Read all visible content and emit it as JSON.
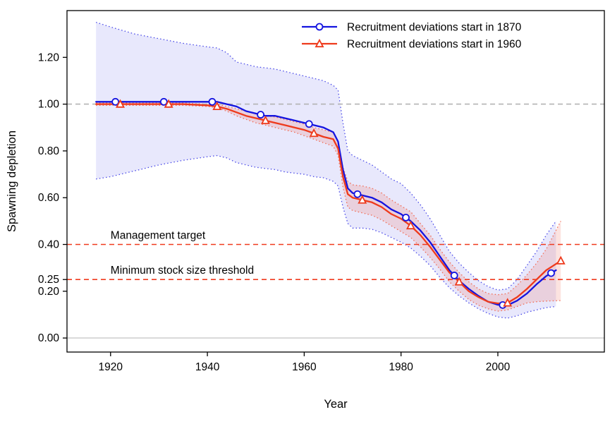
{
  "figure": {
    "background": "#ffffff"
  },
  "chart_data": {
    "type": "line",
    "title": "",
    "xlabel": "Year",
    "ylabel": "Spawning depletion",
    "xlim": [
      1911,
      2022
    ],
    "ylim": [
      -0.06,
      1.4
    ],
    "x_ticks": [
      1920,
      1940,
      1960,
      1980,
      2000
    ],
    "y_ticks": [
      0.0,
      0.2,
      0.25,
      0.4,
      0.6,
      0.8,
      1.0,
      1.2
    ],
    "grid": false,
    "legend_position": "top-right",
    "axis_color": "#000000",
    "reference_lines": [
      {
        "y": 1.0,
        "color": "#b3b3b3",
        "style": "dashed",
        "label": "",
        "label_x": null
      },
      {
        "y": 0.4,
        "color": "#f03a1e",
        "style": "dashed",
        "label": "Management target",
        "label_x": 1920
      },
      {
        "y": 0.25,
        "color": "#f03a1e",
        "style": "dashed",
        "label": "Minimum stock size threshold",
        "label_x": 1920
      },
      {
        "y": 0.0,
        "color": "#c8c8c8",
        "style": "solid",
        "label": "",
        "label_x": null
      }
    ],
    "series": [
      {
        "name": "Recruitment deviations start in 1870",
        "color": "#1414e0",
        "band_stroke": "#4a4ae8",
        "band_fill": "rgba(110,110,235,0.16)",
        "marker": "circle",
        "marker_x": [
          1921,
          1931,
          1941,
          1951,
          1961,
          1971,
          1981,
          1991,
          2001,
          2011
        ],
        "x": [
          1917,
          1920,
          1925,
          1930,
          1935,
          1940,
          1942,
          1944,
          1946,
          1948,
          1950,
          1952,
          1954,
          1956,
          1958,
          1960,
          1962,
          1964,
          1966,
          1967,
          1968,
          1969,
          1970,
          1972,
          1974,
          1976,
          1978,
          1980,
          1982,
          1984,
          1986,
          1988,
          1990,
          1992,
          1994,
          1996,
          1998,
          2000,
          2002,
          2004,
          2006,
          2008,
          2010,
          2012
        ],
        "y": [
          1.01,
          1.01,
          1.01,
          1.01,
          1.01,
          1.01,
          1.01,
          1.0,
          0.99,
          0.97,
          0.96,
          0.95,
          0.95,
          0.94,
          0.93,
          0.92,
          0.91,
          0.9,
          0.88,
          0.84,
          0.72,
          0.64,
          0.62,
          0.61,
          0.6,
          0.58,
          0.55,
          0.53,
          0.5,
          0.46,
          0.41,
          0.35,
          0.29,
          0.245,
          0.21,
          0.18,
          0.155,
          0.142,
          0.14,
          0.16,
          0.19,
          0.23,
          0.265,
          0.29
        ],
        "upper": [
          1.35,
          1.33,
          1.3,
          1.28,
          1.26,
          1.245,
          1.24,
          1.22,
          1.18,
          1.17,
          1.16,
          1.155,
          1.15,
          1.14,
          1.13,
          1.12,
          1.11,
          1.1,
          1.08,
          1.06,
          0.92,
          0.8,
          0.78,
          0.76,
          0.74,
          0.71,
          0.68,
          0.66,
          0.62,
          0.57,
          0.51,
          0.44,
          0.37,
          0.32,
          0.28,
          0.245,
          0.22,
          0.205,
          0.21,
          0.25,
          0.31,
          0.37,
          0.44,
          0.5
        ],
        "lower": [
          0.68,
          0.69,
          0.715,
          0.74,
          0.76,
          0.775,
          0.78,
          0.77,
          0.75,
          0.74,
          0.73,
          0.725,
          0.72,
          0.71,
          0.705,
          0.7,
          0.69,
          0.685,
          0.67,
          0.65,
          0.56,
          0.49,
          0.47,
          0.47,
          0.465,
          0.45,
          0.43,
          0.41,
          0.385,
          0.35,
          0.31,
          0.26,
          0.215,
          0.18,
          0.15,
          0.125,
          0.105,
          0.09,
          0.085,
          0.095,
          0.11,
          0.12,
          0.13,
          0.135
        ]
      },
      {
        "name": "Recruitment deviations start in 1960",
        "color": "#ee3a1c",
        "band_stroke": "#f26b52",
        "band_fill": "rgba(240,90,70,0.17)",
        "marker": "triangle",
        "marker_x": [
          1922,
          1932,
          1942,
          1952,
          1962,
          1972,
          1982,
          1992,
          2002,
          2013
        ],
        "x": [
          1917,
          1920,
          1925,
          1930,
          1935,
          1940,
          1942,
          1944,
          1946,
          1948,
          1950,
          1952,
          1954,
          1956,
          1958,
          1960,
          1962,
          1964,
          1966,
          1967,
          1968,
          1969,
          1970,
          1972,
          1974,
          1976,
          1978,
          1980,
          1982,
          1984,
          1986,
          1988,
          1990,
          1992,
          1994,
          1996,
          1998,
          2000,
          2002,
          2004,
          2006,
          2008,
          2010,
          2013
        ],
        "y": [
          1.0,
          1.0,
          1.0,
          1.0,
          1.0,
          0.995,
          0.99,
          0.98,
          0.965,
          0.95,
          0.94,
          0.93,
          0.92,
          0.91,
          0.9,
          0.89,
          0.875,
          0.86,
          0.85,
          0.81,
          0.69,
          0.615,
          0.6,
          0.59,
          0.58,
          0.56,
          0.53,
          0.51,
          0.48,
          0.44,
          0.39,
          0.335,
          0.28,
          0.24,
          0.2,
          0.175,
          0.155,
          0.148,
          0.15,
          0.175,
          0.21,
          0.25,
          0.29,
          0.33
        ],
        "upper": [
          1.005,
          1.005,
          1.005,
          1.005,
          1.005,
          1.0,
          1.0,
          0.99,
          0.98,
          0.97,
          0.96,
          0.95,
          0.945,
          0.935,
          0.925,
          0.915,
          0.9,
          0.89,
          0.88,
          0.84,
          0.73,
          0.67,
          0.655,
          0.65,
          0.64,
          0.62,
          0.59,
          0.565,
          0.54,
          0.49,
          0.44,
          0.38,
          0.325,
          0.28,
          0.24,
          0.21,
          0.19,
          0.185,
          0.19,
          0.225,
          0.27,
          0.32,
          0.38,
          0.5
        ],
        "lower": [
          0.995,
          0.995,
          0.995,
          0.995,
          0.995,
          0.99,
          0.985,
          0.97,
          0.95,
          0.935,
          0.92,
          0.91,
          0.9,
          0.89,
          0.88,
          0.865,
          0.85,
          0.835,
          0.82,
          0.78,
          0.645,
          0.56,
          0.545,
          0.535,
          0.525,
          0.505,
          0.48,
          0.455,
          0.43,
          0.39,
          0.345,
          0.295,
          0.24,
          0.2,
          0.165,
          0.14,
          0.125,
          0.115,
          0.12,
          0.135,
          0.15,
          0.155,
          0.158,
          0.16
        ]
      }
    ]
  }
}
